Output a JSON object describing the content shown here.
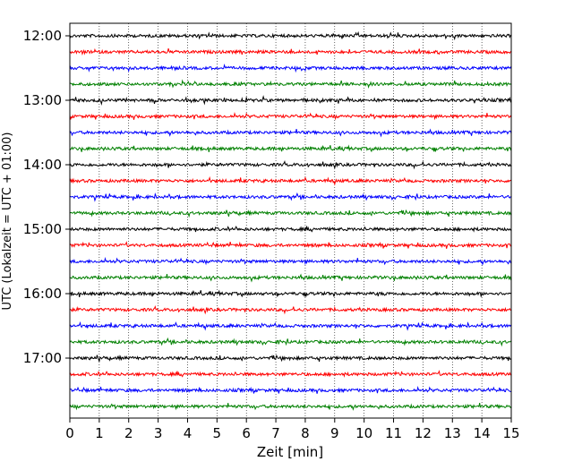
{
  "chart_data": {
    "type": "line",
    "title": "",
    "xlabel": "Zeit  [min]",
    "ylabel": "UTC (Lokalzeit = UTC + 01:00)",
    "xlim": [
      0,
      15
    ],
    "x_ticks": [
      "0",
      "1",
      "2",
      "3",
      "4",
      "5",
      "6",
      "7",
      "8",
      "9",
      "10",
      "11",
      "12",
      "13",
      "14",
      "15"
    ],
    "y_ticks": [
      "12:00",
      "13:00",
      "14:00",
      "15:00",
      "16:00",
      "17:00"
    ],
    "grid": "vertical dotted at each minute",
    "trace_interval_minutes": 15,
    "trace_colors": [
      "#000000",
      "#ff0000",
      "#0000ff",
      "#008000"
    ],
    "series": [
      {
        "start": "12:00",
        "color": "#000000"
      },
      {
        "start": "12:15",
        "color": "#ff0000"
      },
      {
        "start": "12:30",
        "color": "#0000ff"
      },
      {
        "start": "12:45",
        "color": "#008000"
      },
      {
        "start": "13:00",
        "color": "#000000"
      },
      {
        "start": "13:15",
        "color": "#ff0000"
      },
      {
        "start": "13:30",
        "color": "#0000ff"
      },
      {
        "start": "13:45",
        "color": "#008000"
      },
      {
        "start": "14:00",
        "color": "#000000"
      },
      {
        "start": "14:15",
        "color": "#ff0000"
      },
      {
        "start": "14:30",
        "color": "#0000ff"
      },
      {
        "start": "14:45",
        "color": "#008000"
      },
      {
        "start": "15:00",
        "color": "#000000"
      },
      {
        "start": "15:15",
        "color": "#ff0000"
      },
      {
        "start": "15:30",
        "color": "#0000ff"
      },
      {
        "start": "15:45",
        "color": "#008000"
      },
      {
        "start": "16:00",
        "color": "#000000"
      },
      {
        "start": "16:15",
        "color": "#ff0000"
      },
      {
        "start": "16:30",
        "color": "#0000ff"
      },
      {
        "start": "16:45",
        "color": "#008000"
      },
      {
        "start": "17:00",
        "color": "#000000"
      },
      {
        "start": "17:15",
        "color": "#ff0000"
      },
      {
        "start": "17:30",
        "color": "#0000ff"
      },
      {
        "start": "17:45",
        "color": "#008000"
      }
    ]
  }
}
